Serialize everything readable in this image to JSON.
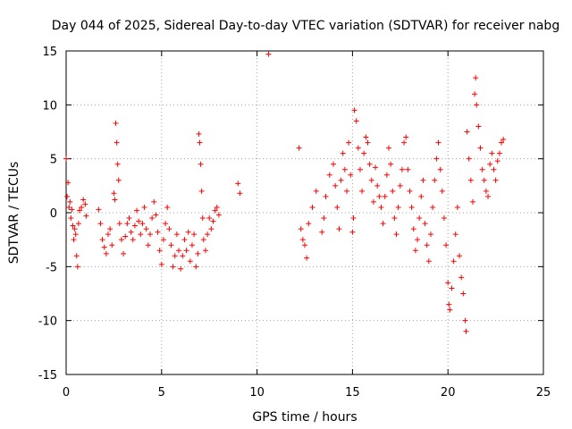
{
  "chart_data": {
    "type": "scatter",
    "title": "Day 044 of 2025, Sidereal Day-to-day VTEC variation (SDTVAR) for receiver nabg",
    "xlabel": "GPS time / hours",
    "ylabel": "SDTVAR / TECUs",
    "xlim": [
      0,
      25
    ],
    "ylim": [
      -15,
      15
    ],
    "xticks": [
      "0",
      "5",
      "10",
      "15",
      "20",
      "25"
    ],
    "yticks": [
      "15",
      "10",
      "5",
      "0",
      "-5",
      "-10",
      "-15"
    ],
    "grid": true,
    "marker": "+",
    "series": [
      {
        "name": "SDTVAR",
        "color": "#ff0000",
        "points": [
          [
            0.0,
            5.0
          ],
          [
            0.05,
            1.5
          ],
          [
            0.1,
            2.8
          ],
          [
            0.15,
            0.5
          ],
          [
            0.2,
            1.0
          ],
          [
            0.25,
            -0.5
          ],
          [
            0.3,
            0.3
          ],
          [
            0.35,
            -1.2
          ],
          [
            0.4,
            -2.5
          ],
          [
            0.45,
            -1.5
          ],
          [
            0.5,
            -2.0
          ],
          [
            0.55,
            -4.0
          ],
          [
            0.6,
            -5.0
          ],
          [
            0.65,
            -1.0
          ],
          [
            0.7,
            0.2
          ],
          [
            0.8,
            0.5
          ],
          [
            0.9,
            1.2
          ],
          [
            1.0,
            0.8
          ],
          [
            1.05,
            -0.3
          ],
          [
            1.7,
            0.3
          ],
          [
            1.8,
            -1.0
          ],
          [
            1.9,
            -2.5
          ],
          [
            2.0,
            -3.2
          ],
          [
            2.1,
            -3.8
          ],
          [
            2.2,
            -2.0
          ],
          [
            2.3,
            -1.5
          ],
          [
            2.4,
            -3.0
          ],
          [
            2.5,
            1.8
          ],
          [
            2.55,
            1.2
          ],
          [
            2.6,
            8.3
          ],
          [
            2.65,
            6.5
          ],
          [
            2.7,
            4.5
          ],
          [
            2.75,
            3.0
          ],
          [
            2.8,
            -1.0
          ],
          [
            2.9,
            -2.5
          ],
          [
            3.0,
            -3.8
          ],
          [
            3.1,
            -2.2
          ],
          [
            3.2,
            -1.0
          ],
          [
            3.3,
            -0.5
          ],
          [
            3.4,
            -1.8
          ],
          [
            3.5,
            -2.5
          ],
          [
            3.6,
            -1.2
          ],
          [
            3.7,
            0.2
          ],
          [
            3.8,
            -0.8
          ],
          [
            3.9,
            -2.0
          ],
          [
            4.0,
            -1.0
          ],
          [
            4.1,
            0.5
          ],
          [
            4.2,
            -1.5
          ],
          [
            4.3,
            -3.0
          ],
          [
            4.4,
            -2.0
          ],
          [
            4.5,
            -0.5
          ],
          [
            4.6,
            1.0
          ],
          [
            4.7,
            -0.2
          ],
          [
            4.8,
            -1.8
          ],
          [
            4.9,
            -3.5
          ],
          [
            5.0,
            -4.8
          ],
          [
            5.1,
            -2.5
          ],
          [
            5.2,
            -1.0
          ],
          [
            5.3,
            0.5
          ],
          [
            5.4,
            -1.5
          ],
          [
            5.5,
            -3.0
          ],
          [
            5.6,
            -5.0
          ],
          [
            5.7,
            -4.0
          ],
          [
            5.8,
            -2.0
          ],
          [
            5.9,
            -3.5
          ],
          [
            6.0,
            -5.2
          ],
          [
            6.1,
            -4.0
          ],
          [
            6.2,
            -2.5
          ],
          [
            6.3,
            -3.5
          ],
          [
            6.4,
            -1.8
          ],
          [
            6.5,
            -4.5
          ],
          [
            6.6,
            -3.0
          ],
          [
            6.7,
            -2.0
          ],
          [
            6.8,
            -5.0
          ],
          [
            6.9,
            -3.8
          ],
          [
            6.95,
            7.3
          ],
          [
            7.0,
            6.5
          ],
          [
            7.05,
            4.5
          ],
          [
            7.1,
            2.0
          ],
          [
            7.15,
            -0.5
          ],
          [
            7.2,
            -2.5
          ],
          [
            7.3,
            -3.5
          ],
          [
            7.4,
            -2.0
          ],
          [
            7.5,
            -0.5
          ],
          [
            7.6,
            -1.5
          ],
          [
            7.7,
            -0.8
          ],
          [
            7.8,
            0.2
          ],
          [
            7.9,
            0.5
          ],
          [
            8.0,
            -0.2
          ],
          [
            9.0,
            2.7
          ],
          [
            9.1,
            1.8
          ],
          [
            10.6,
            14.7
          ],
          [
            12.2,
            6.0
          ],
          [
            12.3,
            -1.5
          ],
          [
            12.4,
            -2.5
          ],
          [
            12.5,
            -3.0
          ],
          [
            12.6,
            -4.2
          ],
          [
            12.7,
            -1.0
          ],
          [
            12.9,
            0.5
          ],
          [
            13.1,
            2.0
          ],
          [
            13.4,
            -1.8
          ],
          [
            13.5,
            -0.5
          ],
          [
            13.6,
            1.5
          ],
          [
            13.8,
            3.5
          ],
          [
            14.0,
            4.5
          ],
          [
            14.1,
            2.5
          ],
          [
            14.2,
            0.5
          ],
          [
            14.3,
            -1.5
          ],
          [
            14.4,
            3.0
          ],
          [
            14.5,
            5.5
          ],
          [
            14.6,
            4.0
          ],
          [
            14.7,
            2.0
          ],
          [
            14.8,
            6.5
          ],
          [
            14.9,
            3.5
          ],
          [
            15.0,
            -1.8
          ],
          [
            15.05,
            -0.5
          ],
          [
            15.1,
            9.5
          ],
          [
            15.2,
            8.5
          ],
          [
            15.3,
            6.0
          ],
          [
            15.4,
            4.0
          ],
          [
            15.5,
            2.0
          ],
          [
            15.6,
            5.5
          ],
          [
            15.7,
            7.0
          ],
          [
            15.8,
            6.5
          ],
          [
            15.9,
            4.5
          ],
          [
            16.0,
            3.0
          ],
          [
            16.1,
            1.0
          ],
          [
            16.2,
            4.2
          ],
          [
            16.3,
            2.5
          ],
          [
            16.4,
            1.5
          ],
          [
            16.5,
            0.5
          ],
          [
            16.6,
            -1.0
          ],
          [
            16.7,
            1.5
          ],
          [
            16.8,
            3.5
          ],
          [
            16.9,
            6.0
          ],
          [
            17.0,
            4.5
          ],
          [
            17.1,
            2.0
          ],
          [
            17.2,
            -0.5
          ],
          [
            17.3,
            -2.0
          ],
          [
            17.4,
            0.5
          ],
          [
            17.5,
            2.5
          ],
          [
            17.6,
            4.0
          ],
          [
            17.7,
            6.5
          ],
          [
            17.8,
            7.0
          ],
          [
            17.9,
            4.0
          ],
          [
            18.0,
            2.0
          ],
          [
            18.1,
            0.5
          ],
          [
            18.2,
            -1.5
          ],
          [
            18.3,
            -3.5
          ],
          [
            18.4,
            -2.5
          ],
          [
            18.5,
            -0.5
          ],
          [
            18.6,
            1.5
          ],
          [
            18.7,
            3.0
          ],
          [
            18.8,
            -1.0
          ],
          [
            18.9,
            -3.0
          ],
          [
            19.0,
            -4.5
          ],
          [
            19.1,
            -2.0
          ],
          [
            19.2,
            0.5
          ],
          [
            19.3,
            3.0
          ],
          [
            19.4,
            5.0
          ],
          [
            19.5,
            6.5
          ],
          [
            19.6,
            4.0
          ],
          [
            19.7,
            2.0
          ],
          [
            19.8,
            -0.5
          ],
          [
            19.9,
            -3.0
          ],
          [
            20.0,
            -6.5
          ],
          [
            20.05,
            -8.5
          ],
          [
            20.1,
            -9.0
          ],
          [
            20.2,
            -7.0
          ],
          [
            20.3,
            -4.5
          ],
          [
            20.4,
            -2.0
          ],
          [
            20.5,
            0.5
          ],
          [
            20.6,
            -4.0
          ],
          [
            20.7,
            -6.0
          ],
          [
            20.8,
            -7.5
          ],
          [
            20.9,
            -10.0
          ],
          [
            20.95,
            -11.0
          ],
          [
            21.0,
            7.5
          ],
          [
            21.1,
            5.0
          ],
          [
            21.2,
            3.0
          ],
          [
            21.3,
            1.0
          ],
          [
            21.4,
            11.0
          ],
          [
            21.45,
            12.5
          ],
          [
            21.5,
            10.0
          ],
          [
            21.6,
            8.0
          ],
          [
            21.7,
            6.0
          ],
          [
            21.8,
            4.0
          ],
          [
            21.9,
            3.0
          ],
          [
            22.0,
            2.0
          ],
          [
            22.1,
            1.5
          ],
          [
            22.2,
            4.5
          ],
          [
            22.3,
            5.5
          ],
          [
            22.4,
            4.0
          ],
          [
            22.5,
            3.0
          ],
          [
            22.6,
            4.8
          ],
          [
            22.7,
            5.5
          ],
          [
            22.8,
            6.5
          ],
          [
            22.9,
            6.8
          ]
        ]
      }
    ]
  }
}
